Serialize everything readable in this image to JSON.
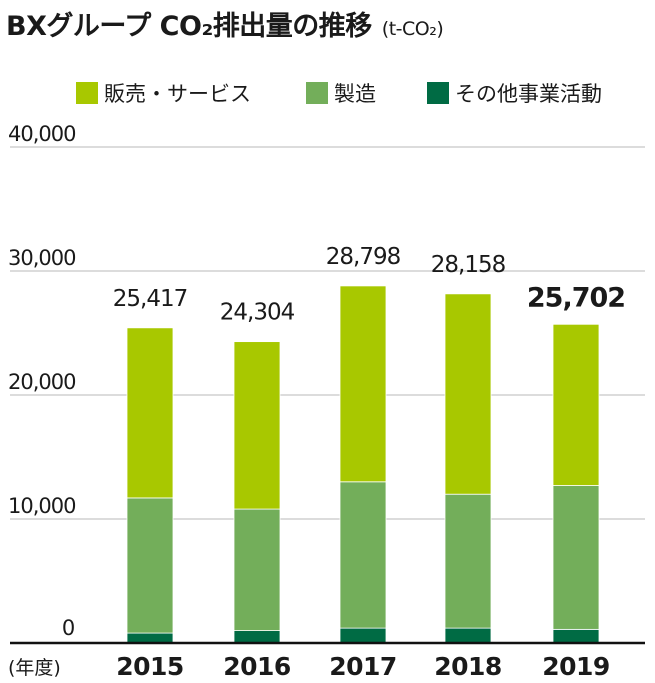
{
  "title": "BXグループ CO₂排出量の推移",
  "unit": "(t-CO₂)",
  "colors": {
    "sales_service": "#a8c800",
    "manufacturing": "#73ae5a",
    "other": "#006b44",
    "grid": "#c8c8c8",
    "axis": "#111111",
    "text": "#1a1a1a"
  },
  "chart_data": {
    "type": "bar",
    "stacked": true,
    "categories": [
      "2015",
      "2016",
      "2017",
      "2018",
      "2019"
    ],
    "xlabel": "(年度)",
    "ylabel": "",
    "ylim": [
      0,
      40000
    ],
    "yticks": [
      "0",
      "10,000",
      "20,000",
      "30,000",
      "40,000"
    ],
    "grid": true,
    "legend_position": "top",
    "series": [
      {
        "name": "その他事業活動",
        "color_key": "other",
        "values": [
          800,
          1000,
          1200,
          1200,
          1100
        ]
      },
      {
        "name": "製造",
        "color_key": "manufacturing",
        "values": [
          10900,
          9800,
          11800,
          10800,
          11600
        ]
      },
      {
        "name": "販売・サービス",
        "color_key": "sales_service",
        "values": [
          13717,
          13504,
          15798,
          16158,
          13002
        ]
      }
    ],
    "totals": [
      25417,
      24304,
      28798,
      28158,
      25702
    ],
    "total_labels": [
      "25,417",
      "24,304",
      "28,798",
      "28,158",
      "25,702"
    ],
    "highlighted_category": "2019"
  }
}
